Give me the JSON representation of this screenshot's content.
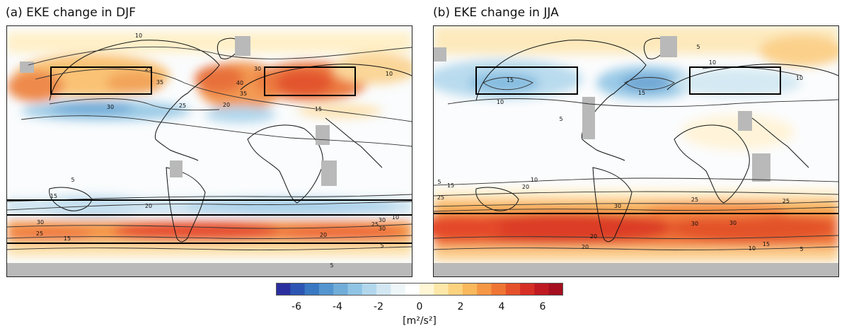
{
  "panels": [
    {
      "id": "a",
      "title": "(a) EKE change in DJF",
      "contour_labels": [
        "10",
        "25",
        "35",
        "30",
        "30",
        "40",
        "35",
        "20",
        "25",
        "15",
        "10",
        "20",
        "25",
        "30",
        "15",
        "5",
        "5",
        "20",
        "30",
        "25",
        "10",
        "5",
        "15",
        "30"
      ]
    },
    {
      "id": "b",
      "title": "(b) EKE change in JJA",
      "contour_labels": [
        "5",
        "15",
        "10",
        "5",
        "15",
        "10",
        "10",
        "5",
        "10",
        "15",
        "20",
        "25",
        "20",
        "25",
        "30",
        "30",
        "30",
        "25",
        "20",
        "15",
        "10",
        "5"
      ]
    }
  ],
  "colorbar": {
    "ticks": [
      "-6",
      "-4",
      "-2",
      "0",
      "2",
      "4",
      "6"
    ],
    "unit": "[m²/s²]",
    "min": -7,
    "max": 7,
    "colors": [
      "#2b2f9e",
      "#2d55b3",
      "#3a78c2",
      "#5495cf",
      "#71add9",
      "#90c4e4",
      "#b2d7ec",
      "#d2e7f2",
      "#eef6f9",
      "#ffffff",
      "#fff6d6",
      "#fde7a8",
      "#fcd27f",
      "#f9b85c",
      "#f59745",
      "#ef7535",
      "#e5512a",
      "#d62f25",
      "#bf1a22",
      "#a50f1f"
    ]
  }
}
